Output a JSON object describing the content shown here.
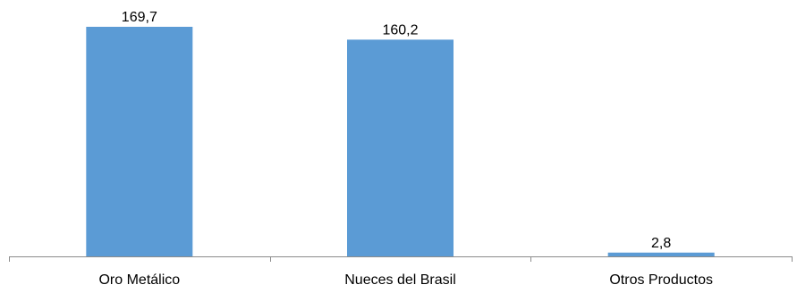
{
  "chart_data": {
    "type": "bar",
    "title": "",
    "xlabel": "",
    "ylabel": "",
    "categories": [
      "Oro Metálico",
      "Nueces del Brasil",
      "Otros Productos"
    ],
    "series": [
      {
        "values": [
          169.7,
          160.2,
          2.8
        ],
        "labels": [
          "169,7",
          "160,2",
          "2,8"
        ],
        "color": "#5b9bd5"
      }
    ],
    "ylim": [
      0,
      169.7
    ],
    "grid": false,
    "legend": "none"
  }
}
